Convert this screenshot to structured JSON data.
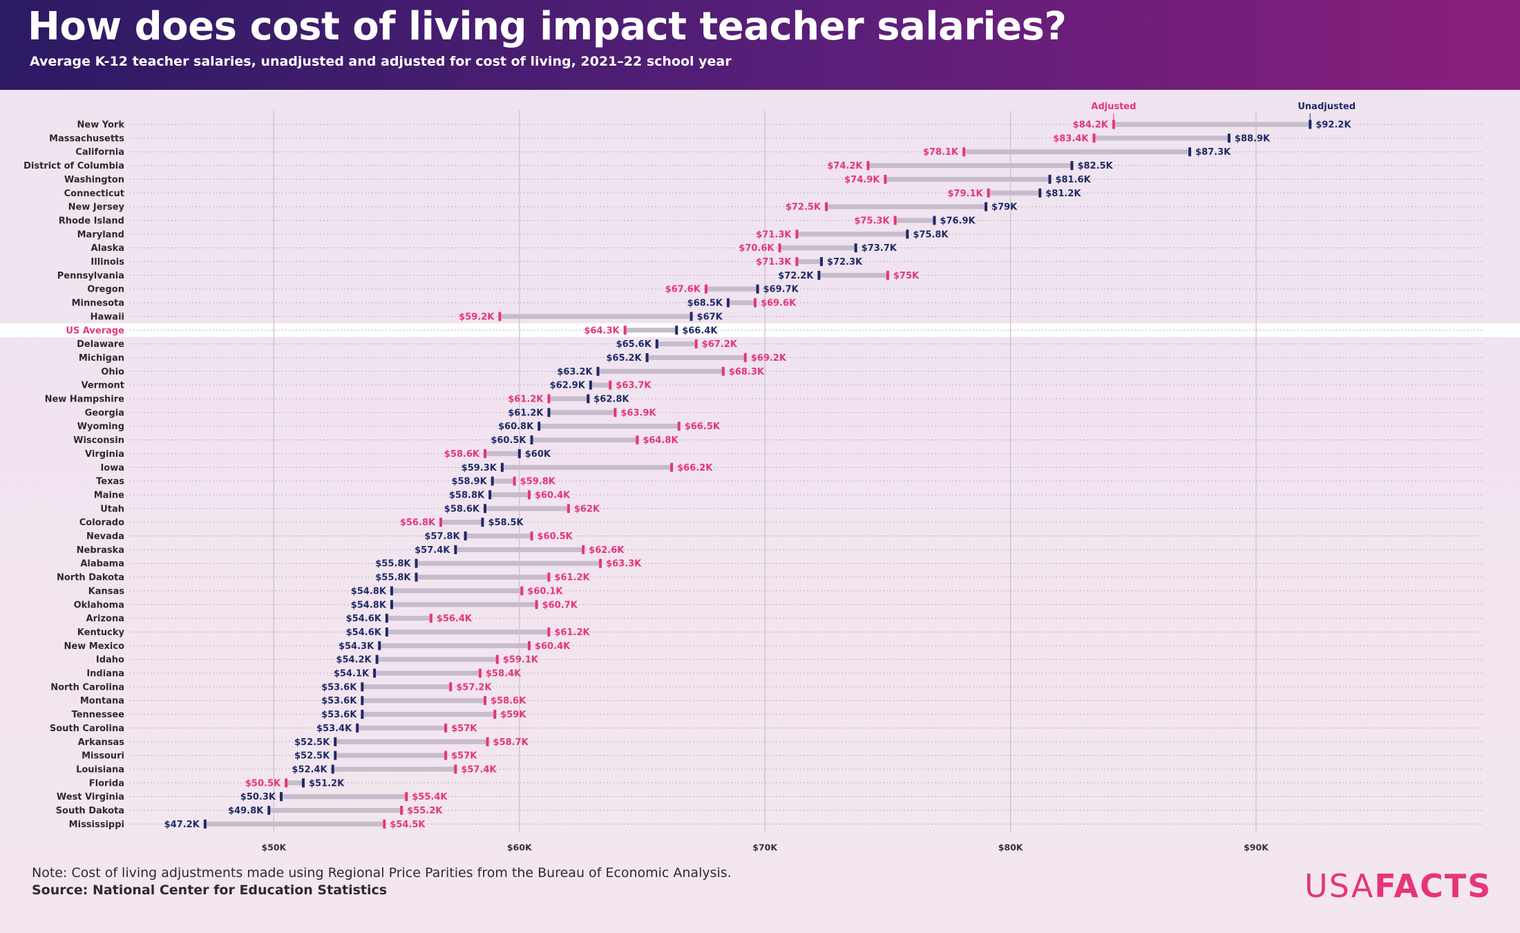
{
  "title": "How does cost of living impact teacher salaries?",
  "subtitle": "Average K-12 teacher salaries, unadjusted and adjusted for cost of living, 2021–22 school year",
  "note": "Note: Cost of living adjustments made using Regional Price Parities from the Bureau of Economic Analysis.",
  "source": "Source: National Center for Education Statistics",
  "logo": {
    "part1": "USA",
    "part2": "FACTS"
  },
  "colors": {
    "adjusted": "#e6357a",
    "unadjusted": "#1f2a66",
    "bar": "#c7bccb",
    "highlight_row": "#ffffff",
    "grid": "#c9c2cc"
  },
  "chart_data": {
    "type": "dumbbell",
    "x_ticks": [
      "$50K",
      "$60K",
      "$70K",
      "$80K",
      "$90K"
    ],
    "x_tick_values": [
      50,
      60,
      70,
      80,
      90
    ],
    "xlim": [
      42,
      99.2
    ],
    "unit": "thousands of dollars",
    "series": [
      {
        "name": "Adjusted",
        "key": "adj"
      },
      {
        "name": "Unadjusted",
        "key": "unadj"
      }
    ],
    "highlight": "US Average",
    "rows": [
      {
        "label": "New York",
        "unadj": 92.2,
        "adj": 84.2,
        "unadj_label": "$92.2K",
        "adj_label": "$84.2K"
      },
      {
        "label": "Massachusetts",
        "unadj": 88.9,
        "adj": 83.4,
        "unadj_label": "$88.9K",
        "adj_label": "$83.4K"
      },
      {
        "label": "California",
        "unadj": 87.3,
        "adj": 78.1,
        "unadj_label": "$87.3K",
        "adj_label": "$78.1K"
      },
      {
        "label": "District of Columbia",
        "unadj": 82.5,
        "adj": 74.2,
        "unadj_label": "$82.5K",
        "adj_label": "$74.2K"
      },
      {
        "label": "Washington",
        "unadj": 81.6,
        "adj": 74.9,
        "unadj_label": "$81.6K",
        "adj_label": "$74.9K"
      },
      {
        "label": "Connecticut",
        "unadj": 81.2,
        "adj": 79.1,
        "unadj_label": "$81.2K",
        "adj_label": "$79.1K"
      },
      {
        "label": "New Jersey",
        "unadj": 79.0,
        "adj": 72.5,
        "unadj_label": "$79K",
        "adj_label": "$72.5K"
      },
      {
        "label": "Rhode Island",
        "unadj": 76.9,
        "adj": 75.3,
        "unadj_label": "$76.9K",
        "adj_label": "$75.3K"
      },
      {
        "label": "Maryland",
        "unadj": 75.8,
        "adj": 71.3,
        "unadj_label": "$75.8K",
        "adj_label": "$71.3K"
      },
      {
        "label": "Alaska",
        "unadj": 73.7,
        "adj": 70.6,
        "unadj_label": "$73.7K",
        "adj_label": "$70.6K"
      },
      {
        "label": "Illinois",
        "unadj": 72.3,
        "adj": 71.3,
        "unadj_label": "$72.3K",
        "adj_label": "$71.3K"
      },
      {
        "label": "Pennsylvania",
        "unadj": 72.2,
        "adj": 75.0,
        "unadj_label": "$72.2K",
        "adj_label": "$75K"
      },
      {
        "label": "Oregon",
        "unadj": 69.7,
        "adj": 67.6,
        "unadj_label": "$69.7K",
        "adj_label": "$67.6K"
      },
      {
        "label": "Minnesota",
        "unadj": 68.5,
        "adj": 69.6,
        "unadj_label": "$68.5K",
        "adj_label": "$69.6K"
      },
      {
        "label": "Hawaii",
        "unadj": 67.0,
        "adj": 59.2,
        "unadj_label": "$67K",
        "adj_label": "$59.2K"
      },
      {
        "label": "US Average",
        "unadj": 66.4,
        "adj": 64.3,
        "unadj_label": "$66.4K",
        "adj_label": "$64.3K"
      },
      {
        "label": "Delaware",
        "unadj": 65.6,
        "adj": 67.2,
        "unadj_label": "$65.6K",
        "adj_label": "$67.2K"
      },
      {
        "label": "Michigan",
        "unadj": 65.2,
        "adj": 69.2,
        "unadj_label": "$65.2K",
        "adj_label": "$69.2K"
      },
      {
        "label": "Ohio",
        "unadj": 63.2,
        "adj": 68.3,
        "unadj_label": "$63.2K",
        "adj_label": "$68.3K"
      },
      {
        "label": "Vermont",
        "unadj": 62.9,
        "adj": 63.7,
        "unadj_label": "$62.9K",
        "adj_label": "$63.7K"
      },
      {
        "label": "New Hampshire",
        "unadj": 62.8,
        "adj": 61.2,
        "unadj_label": "$62.8K",
        "adj_label": "$61.2K"
      },
      {
        "label": "Georgia",
        "unadj": 61.2,
        "adj": 63.9,
        "unadj_label": "$61.2K",
        "adj_label": "$63.9K"
      },
      {
        "label": "Wyoming",
        "unadj": 60.8,
        "adj": 66.5,
        "unadj_label": "$60.8K",
        "adj_label": "$66.5K"
      },
      {
        "label": "Wisconsin",
        "unadj": 60.5,
        "adj": 64.8,
        "unadj_label": "$60.5K",
        "adj_label": "$64.8K"
      },
      {
        "label": "Virginia",
        "unadj": 60.0,
        "adj": 58.6,
        "unadj_label": "$60K",
        "adj_label": "$58.6K"
      },
      {
        "label": "Iowa",
        "unadj": 59.3,
        "adj": 66.2,
        "unadj_label": "$59.3K",
        "adj_label": "$66.2K"
      },
      {
        "label": "Texas",
        "unadj": 58.9,
        "adj": 59.8,
        "unadj_label": "$58.9K",
        "adj_label": "$59.8K"
      },
      {
        "label": "Maine",
        "unadj": 58.8,
        "adj": 60.4,
        "unadj_label": "$58.8K",
        "adj_label": "$60.4K"
      },
      {
        "label": "Utah",
        "unadj": 58.6,
        "adj": 62.0,
        "unadj_label": "$58.6K",
        "adj_label": "$62K"
      },
      {
        "label": "Colorado",
        "unadj": 58.5,
        "adj": 56.8,
        "unadj_label": "$58.5K",
        "adj_label": "$56.8K"
      },
      {
        "label": "Nevada",
        "unadj": 57.8,
        "adj": 60.5,
        "unadj_label": "$57.8K",
        "adj_label": "$60.5K"
      },
      {
        "label": "Nebraska",
        "unadj": 57.4,
        "adj": 62.6,
        "unadj_label": "$57.4K",
        "adj_label": "$62.6K"
      },
      {
        "label": "Alabama",
        "unadj": 55.8,
        "adj": 63.3,
        "unadj_label": "$55.8K",
        "adj_label": "$63.3K"
      },
      {
        "label": "North Dakota",
        "unadj": 55.8,
        "adj": 61.2,
        "unadj_label": "$55.8K",
        "adj_label": "$61.2K"
      },
      {
        "label": "Kansas",
        "unadj": 54.8,
        "adj": 60.1,
        "unadj_label": "$54.8K",
        "adj_label": "$60.1K"
      },
      {
        "label": "Oklahoma",
        "unadj": 54.8,
        "adj": 60.7,
        "unadj_label": "$54.8K",
        "adj_label": "$60.7K"
      },
      {
        "label": "Arizona",
        "unadj": 54.6,
        "adj": 56.4,
        "unadj_label": "$54.6K",
        "adj_label": "$56.4K"
      },
      {
        "label": "Kentucky",
        "unadj": 54.6,
        "adj": 61.2,
        "unadj_label": "$54.6K",
        "adj_label": "$61.2K"
      },
      {
        "label": "New Mexico",
        "unadj": 54.3,
        "adj": 60.4,
        "unadj_label": "$54.3K",
        "adj_label": "$60.4K"
      },
      {
        "label": "Idaho",
        "unadj": 54.2,
        "adj": 59.1,
        "unadj_label": "$54.2K",
        "adj_label": "$59.1K"
      },
      {
        "label": "Indiana",
        "unadj": 54.1,
        "adj": 58.4,
        "unadj_label": "$54.1K",
        "adj_label": "$58.4K"
      },
      {
        "label": "North Carolina",
        "unadj": 53.6,
        "adj": 57.2,
        "unadj_label": "$53.6K",
        "adj_label": "$57.2K"
      },
      {
        "label": "Montana",
        "unadj": 53.6,
        "adj": 58.6,
        "unadj_label": "$53.6K",
        "adj_label": "$58.6K"
      },
      {
        "label": "Tennessee",
        "unadj": 53.6,
        "adj": 59.0,
        "unadj_label": "$53.6K",
        "adj_label": "$59K"
      },
      {
        "label": "South Carolina",
        "unadj": 53.4,
        "adj": 57.0,
        "unadj_label": "$53.4K",
        "adj_label": "$57K"
      },
      {
        "label": "Arkansas",
        "unadj": 52.5,
        "adj": 58.7,
        "unadj_label": "$52.5K",
        "adj_label": "$58.7K"
      },
      {
        "label": "Missouri",
        "unadj": 52.5,
        "adj": 57.0,
        "unadj_label": "$52.5K",
        "adj_label": "$57K"
      },
      {
        "label": "Louisiana",
        "unadj": 52.4,
        "adj": 57.4,
        "unadj_label": "$52.4K",
        "adj_label": "$57.4K"
      },
      {
        "label": "Florida",
        "unadj": 51.2,
        "adj": 50.5,
        "unadj_label": "$51.2K",
        "adj_label": "$50.5K"
      },
      {
        "label": "West Virginia",
        "unadj": 50.3,
        "adj": 55.4,
        "unadj_label": "$50.3K",
        "adj_label": "$55.4K"
      },
      {
        "label": "South Dakota",
        "unadj": 49.8,
        "adj": 55.2,
        "unadj_label": "$49.8K",
        "adj_label": "$55.2K"
      },
      {
        "label": "Mississippi",
        "unadj": 47.2,
        "adj": 54.5,
        "unadj_label": "$47.2K",
        "adj_label": "$54.5K"
      }
    ]
  }
}
